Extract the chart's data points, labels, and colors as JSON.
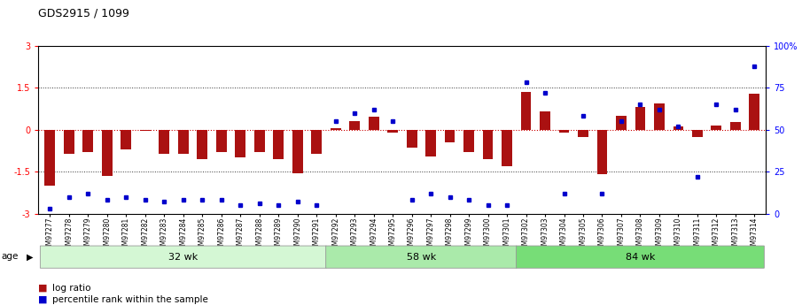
{
  "title": "GDS2915 / 1099",
  "samples": [
    "GSM97277",
    "GSM97278",
    "GSM97279",
    "GSM97280",
    "GSM97281",
    "GSM97282",
    "GSM97283",
    "GSM97284",
    "GSM97285",
    "GSM97286",
    "GSM97287",
    "GSM97288",
    "GSM97289",
    "GSM97290",
    "GSM97291",
    "GSM97292",
    "GSM97293",
    "GSM97294",
    "GSM97295",
    "GSM97296",
    "GSM97297",
    "GSM97298",
    "GSM97299",
    "GSM97300",
    "GSM97301",
    "GSM97302",
    "GSM97303",
    "GSM97304",
    "GSM97305",
    "GSM97306",
    "GSM97307",
    "GSM97308",
    "GSM97309",
    "GSM97310",
    "GSM97311",
    "GSM97312",
    "GSM97313",
    "GSM97314"
  ],
  "log_ratio": [
    -2.0,
    -0.85,
    -0.8,
    -1.65,
    -0.7,
    -0.05,
    -0.85,
    -0.85,
    -1.05,
    -0.8,
    -1.0,
    -0.8,
    -1.05,
    -1.55,
    -0.85,
    0.05,
    0.3,
    0.45,
    -0.1,
    -0.65,
    -0.95,
    -0.45,
    -0.8,
    -1.05,
    -1.3,
    1.35,
    0.65,
    -0.1,
    -0.25,
    -1.6,
    0.5,
    0.8,
    0.95,
    0.12,
    -0.28,
    0.15,
    0.28,
    1.3
  ],
  "percentile": [
    3,
    10,
    12,
    8,
    10,
    8,
    7,
    8,
    8,
    8,
    5,
    6,
    5,
    7,
    5,
    55,
    60,
    62,
    55,
    8,
    12,
    10,
    8,
    5,
    5,
    78,
    72,
    12,
    58,
    12,
    55,
    65,
    62,
    52,
    22,
    65,
    62,
    88
  ],
  "groups": [
    {
      "label": "32 wk",
      "start": 0,
      "end": 15,
      "color": "#d4f7d4"
    },
    {
      "label": "58 wk",
      "start": 15,
      "end": 25,
      "color": "#aaeaaa"
    },
    {
      "label": "84 wk",
      "start": 25,
      "end": 38,
      "color": "#77dd77"
    }
  ],
  "ylim_left": [
    -3,
    3
  ],
  "ylim_right": [
    0,
    100
  ],
  "bar_color": "#aa1111",
  "dot_color": "#0000cc",
  "hline_color": "#cc0000",
  "dotted_color": "#333333",
  "legend_bar_label": "log ratio",
  "legend_dot_label": "percentile rank within the sample",
  "age_label": "age",
  "title_fontsize": 9,
  "tick_fontsize": 6.5
}
